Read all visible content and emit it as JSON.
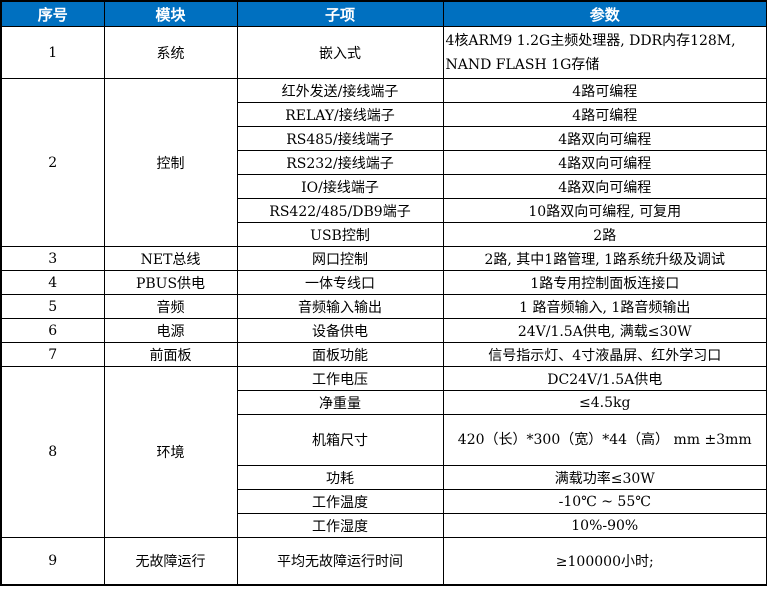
{
  "header": [
    "序号",
    "模块",
    "子项",
    "参数"
  ],
  "header_color": "#0070c0",
  "groups": [
    {
      "no": "1",
      "module": "系统",
      "items": [
        {
          "sub": "嵌入式",
          "param": "4核ARM9 1.2G主频处理器, DDR内存128M, NAND FLASH  1G存储",
          "h": 52,
          "multi": "left"
        }
      ]
    },
    {
      "no": "2",
      "module": "控制",
      "items": [
        {
          "sub": "红外发送/接线端子",
          "param": "4路可编程"
        },
        {
          "sub": "RELAY/接线端子",
          "param": "4路可编程"
        },
        {
          "sub": "RS485/接线端子",
          "param": "4路双向可编程"
        },
        {
          "sub": "RS232/接线端子",
          "param": "4路双向可编程"
        },
        {
          "sub": "IO/接线端子",
          "param": "4路双向可编程"
        },
        {
          "sub": "RS422/485/DB9端子",
          "param": "10路双向可编程, 可复用"
        },
        {
          "sub": "USB控制",
          "param": "2路"
        }
      ]
    },
    {
      "no": "3",
      "module": "NET总线",
      "items": [
        {
          "sub": "网口控制",
          "param": "2路, 其中1路管理, 1路系统升级及调试"
        }
      ]
    },
    {
      "no": "4",
      "module": "PBUS供电",
      "items": [
        {
          "sub": "一体专线口",
          "param": "1路专用控制面板连接口"
        }
      ]
    },
    {
      "no": "5",
      "module": "音频",
      "items": [
        {
          "sub": "音频输入输出",
          "param": "1 路音频输入, 1路音频输出"
        }
      ]
    },
    {
      "no": "6",
      "module": "电源",
      "items": [
        {
          "sub": "设备供电",
          "param": "24V/1.5A供电, 满载≤30W"
        }
      ]
    },
    {
      "no": "7",
      "module": "前面板",
      "items": [
        {
          "sub": "面板功能",
          "param": "信号指示灯、4寸液晶屏、红外学习口"
        }
      ]
    },
    {
      "no": "8",
      "module": "环境",
      "items": [
        {
          "sub": "工作电压",
          "param": "DC24V/1.5A供电"
        },
        {
          "sub": "净重量",
          "param": "≤4.5kg"
        },
        {
          "sub": "机箱尺寸",
          "param": "420（长）*300（宽）*44（高） mm ±3mm",
          "h": 51,
          "multi": "center"
        },
        {
          "sub": "功耗",
          "param": "满载功率≤30W"
        },
        {
          "sub": "工作温度",
          "param": "-10℃ ~ 55℃"
        },
        {
          "sub": "工作湿度",
          "param": "10%-90%"
        }
      ]
    },
    {
      "no": "9",
      "module": "无故障运行",
      "items": [
        {
          "sub": "平均无故障运行时间",
          "param": "≥100000小时;",
          "h": 47
        }
      ]
    }
  ]
}
